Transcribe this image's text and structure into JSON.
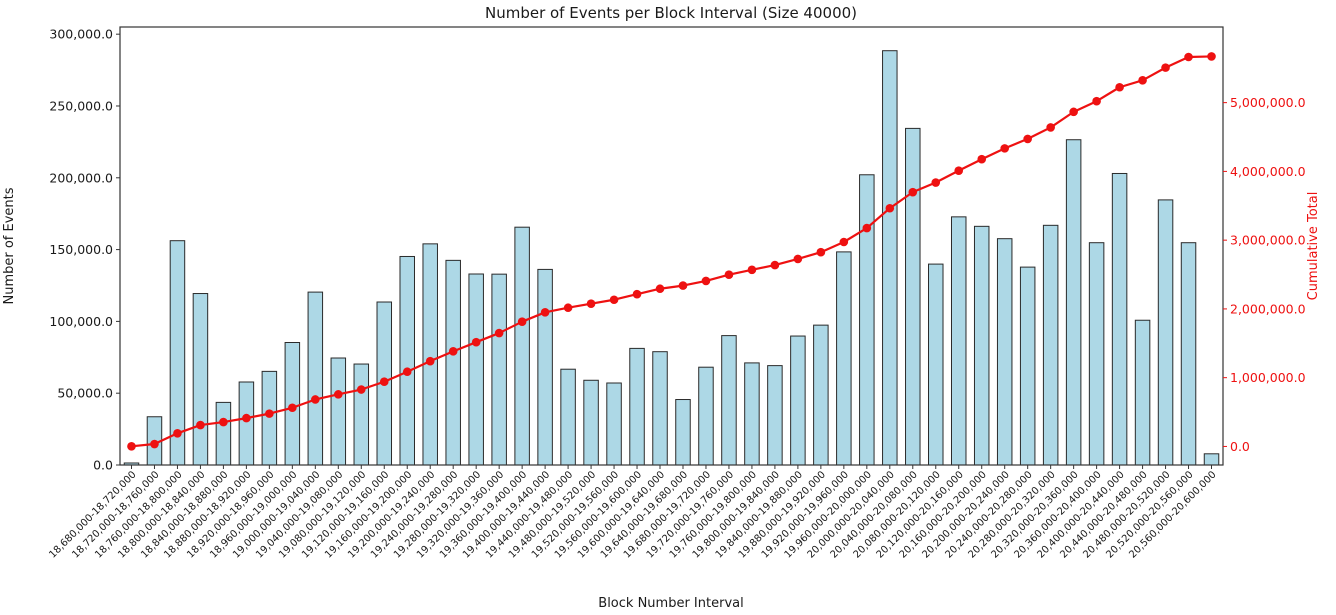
{
  "chart_data": {
    "type": "bar",
    "title": "Number of Events per Block Interval (Size 40000)",
    "xlabel": "Block Number Interval",
    "ylabel": "Number of Events",
    "y2label": "Cumulative Total",
    "grid": false,
    "legend": "none",
    "ylim": [
      0,
      305000
    ],
    "y2lim": [
      -270000,
      6100000
    ],
    "yticks": [
      0,
      50000,
      100000,
      150000,
      200000,
      250000,
      300000
    ],
    "y2ticks": [
      0,
      1000000,
      2000000,
      3000000,
      4000000,
      5000000
    ],
    "colors": {
      "bar_fill": "#add8e6",
      "bar_edge": "#2a2a2a",
      "line": "#ee1111",
      "axis": "#333333",
      "text": "#1a1a1a"
    },
    "categories": [
      "18,680,000-18,720,000",
      "18,720,000-18,760,000",
      "18,760,000-18,800,000",
      "18,800,000-18,840,000",
      "18,840,000-18,880,000",
      "18,880,000-18,920,000",
      "18,920,000-18,960,000",
      "18,960,000-19,000,000",
      "19,000,000-19,040,000",
      "19,040,000-19,080,000",
      "19,080,000-19,120,000",
      "19,120,000-19,160,000",
      "19,160,000-19,200,000",
      "19,200,000-19,240,000",
      "19,240,000-19,280,000",
      "19,280,000-19,320,000",
      "19,320,000-19,360,000",
      "19,360,000-19,400,000",
      "19,400,000-19,440,000",
      "19,440,000-19,480,000",
      "19,480,000-19,520,000",
      "19,520,000-19,560,000",
      "19,560,000-19,600,000",
      "19,600,000-19,640,000",
      "19,640,000-19,680,000",
      "19,680,000-19,720,000",
      "19,720,000-19,760,000",
      "19,760,000-19,800,000",
      "19,800,000-19,840,000",
      "19,840,000-19,880,000",
      "19,880,000-19,920,000",
      "19,920,000-19,960,000",
      "19,960,000-20,000,000",
      "20,000,000-20,040,000",
      "20,040,000-20,080,000",
      "20,080,000-20,120,000",
      "20,120,000-20,160,000",
      "20,160,000-20,200,000",
      "20,200,000-20,240,000",
      "20,240,000-20,280,000",
      "20,280,000-20,320,000",
      "20,320,000-20,360,000",
      "20,360,000-20,400,000",
      "20,400,000-20,440,000",
      "20,440,000-20,480,000",
      "20,480,000-20,520,000",
      "20,520,000-20,560,000",
      "20,560,000-20,600,000"
    ],
    "series": [
      {
        "name": "Number of Events",
        "kind": "bar",
        "axis": "left",
        "values": [
          1400,
          33600,
          156200,
          119400,
          43600,
          57800,
          65200,
          85300,
          120400,
          74500,
          70300,
          113500,
          145200,
          154000,
          142500,
          133000,
          132900,
          165600,
          136200,
          66700,
          59000,
          57100,
          81200,
          78900,
          45600,
          68100,
          90100,
          71100,
          69200,
          89800,
          97400,
          148400,
          202100,
          288500,
          234400,
          139900,
          172800,
          166200,
          157600,
          137800,
          166900,
          226500,
          154800,
          203000,
          100800,
          184600,
          154800,
          7800
        ]
      },
      {
        "name": "Cumulative Total",
        "kind": "line",
        "axis": "right",
        "values": [
          1400,
          35000,
          191200,
          310600,
          354200,
          412000,
          477200,
          562500,
          682900,
          757400,
          827700,
          941200,
          1086400,
          1240400,
          1382900,
          1515900,
          1648800,
          1814400,
          1950600,
          2017300,
          2076300,
          2133400,
          2214600,
          2293500,
          2339100,
          2407200,
          2497300,
          2568400,
          2637600,
          2727400,
          2824800,
          2973200,
          3175300,
          3463800,
          3698200,
          3838100,
          4010900,
          4177100,
          4334700,
          4472500,
          4639400,
          4865900,
          5020700,
          5223700,
          5324500,
          5509100,
          5663900,
          5671700
        ]
      }
    ]
  }
}
